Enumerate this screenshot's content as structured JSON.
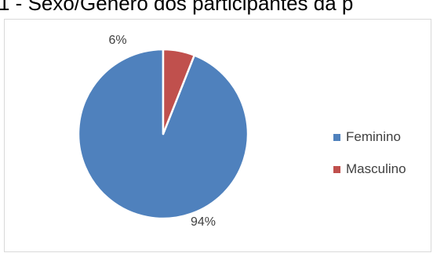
{
  "chart_data": {
    "type": "pie",
    "title": "1 - Sexo/Gênero dos participantes da p",
    "slices": [
      {
        "name": "Feminino",
        "value": 94,
        "label": "94%",
        "color": "#4f81bd"
      },
      {
        "name": "Masculino",
        "value": 6,
        "label": "6%",
        "color": "#c0504d"
      }
    ],
    "legend": {
      "position": "right",
      "entries": [
        "Feminino",
        "Masculino"
      ]
    }
  }
}
